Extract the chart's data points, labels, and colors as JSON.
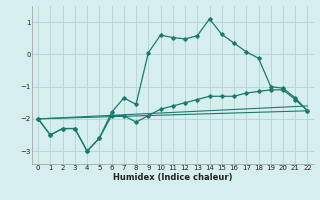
{
  "title": "",
  "xlabel": "Humidex (Indice chaleur)",
  "background_color": "#d6eeee",
  "grid_color": "#b8d8d8",
  "line_color": "#1a7a6e",
  "xlim": [
    -0.5,
    22.5
  ],
  "ylim": [
    -3.4,
    1.5
  ],
  "xticks": [
    0,
    1,
    2,
    3,
    4,
    5,
    6,
    7,
    8,
    9,
    10,
    11,
    12,
    13,
    14,
    15,
    16,
    17,
    18,
    19,
    20,
    21,
    22
  ],
  "yticks": [
    -3,
    -2,
    -1,
    0,
    1
  ],
  "line1_x": [
    0,
    1,
    2,
    3,
    4,
    5,
    6,
    7,
    8,
    9,
    10,
    11,
    12,
    13,
    14,
    15,
    16,
    17,
    18,
    19,
    20,
    21,
    22
  ],
  "line1_y": [
    -2.0,
    -2.5,
    -2.3,
    -2.3,
    -3.0,
    -2.6,
    -1.8,
    -1.35,
    -1.55,
    0.05,
    0.6,
    0.52,
    0.48,
    0.58,
    1.1,
    0.62,
    0.35,
    0.08,
    -0.12,
    -1.0,
    -1.05,
    -1.35,
    -1.75
  ],
  "line2_x": [
    0,
    1,
    2,
    3,
    4,
    5,
    6,
    7,
    8,
    9,
    10,
    11,
    12,
    13,
    14,
    15,
    16,
    17,
    18,
    19,
    20,
    21,
    22
  ],
  "line2_y": [
    -2.0,
    -2.5,
    -2.3,
    -2.3,
    -3.0,
    -2.6,
    -1.9,
    -1.9,
    -2.1,
    -1.9,
    -1.7,
    -1.6,
    -1.5,
    -1.4,
    -1.3,
    -1.3,
    -1.3,
    -1.2,
    -1.15,
    -1.1,
    -1.1,
    -1.4,
    -1.75
  ],
  "line3_x": [
    0,
    22
  ],
  "line3_y": [
    -2.0,
    -1.6
  ],
  "line4_x": [
    0,
    22
  ],
  "line4_y": [
    -2.0,
    -1.75
  ]
}
